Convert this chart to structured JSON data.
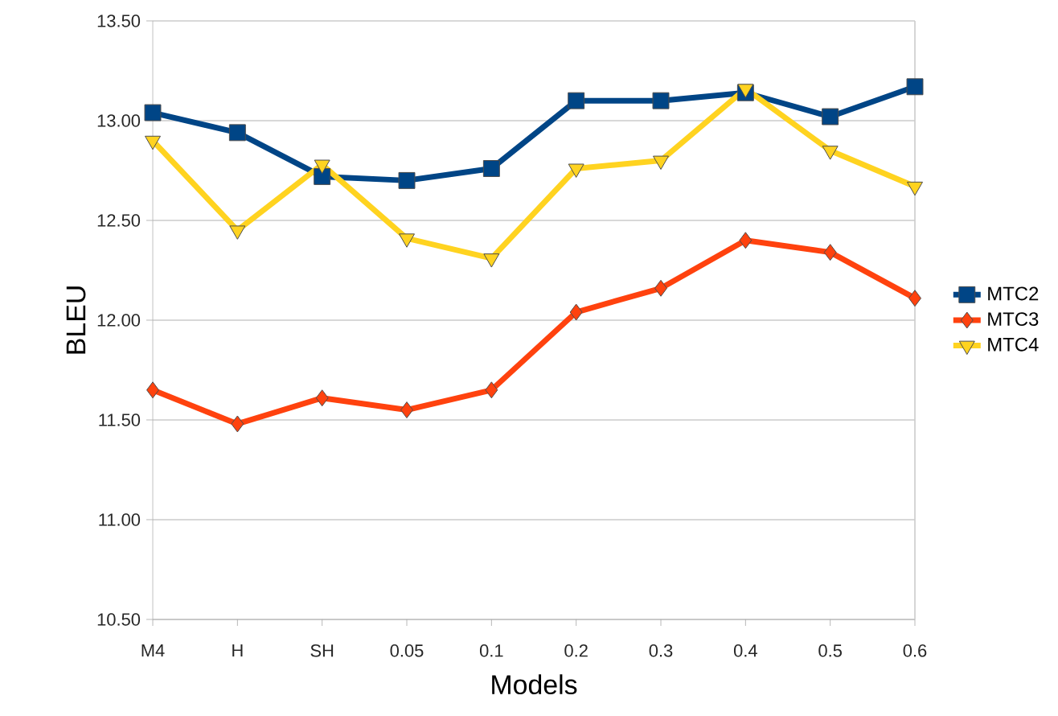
{
  "chart_data": {
    "type": "line",
    "xlabel": "Models",
    "ylabel": "BLEU",
    "categories": [
      "M4",
      "H",
      "SH",
      "0.05",
      "0.1",
      "0.2",
      "0.3",
      "0.4",
      "0.5",
      "0.6"
    ],
    "series": [
      {
        "name": "MTC2",
        "color": "#004586",
        "marker": "square",
        "values": [
          13.04,
          12.94,
          12.72,
          12.7,
          12.76,
          13.1,
          13.1,
          13.14,
          13.02,
          13.17
        ]
      },
      {
        "name": "MTC3",
        "color": "#ff420e",
        "marker": "diamond",
        "values": [
          11.65,
          11.48,
          11.61,
          11.55,
          11.65,
          12.04,
          12.16,
          12.4,
          12.34,
          12.11
        ]
      },
      {
        "name": "MTC4",
        "color": "#ffd320",
        "marker": "triangle",
        "values": [
          12.9,
          12.45,
          12.78,
          12.41,
          12.31,
          12.76,
          12.8,
          13.16,
          12.85,
          12.67
        ]
      }
    ],
    "ylim": [
      10.5,
      13.5
    ],
    "yticks": [
      {
        "value": 10.5,
        "label": "10.50"
      },
      {
        "value": 11.0,
        "label": "11.00"
      },
      {
        "value": 11.5,
        "label": "11.50"
      },
      {
        "value": 12.0,
        "label": "12.00"
      },
      {
        "value": 12.5,
        "label": "12.50"
      },
      {
        "value": 13.0,
        "label": "13.00"
      },
      {
        "value": 13.5,
        "label": "13.50"
      }
    ],
    "grid": "y",
    "legend": "right",
    "line_style": "solid"
  }
}
